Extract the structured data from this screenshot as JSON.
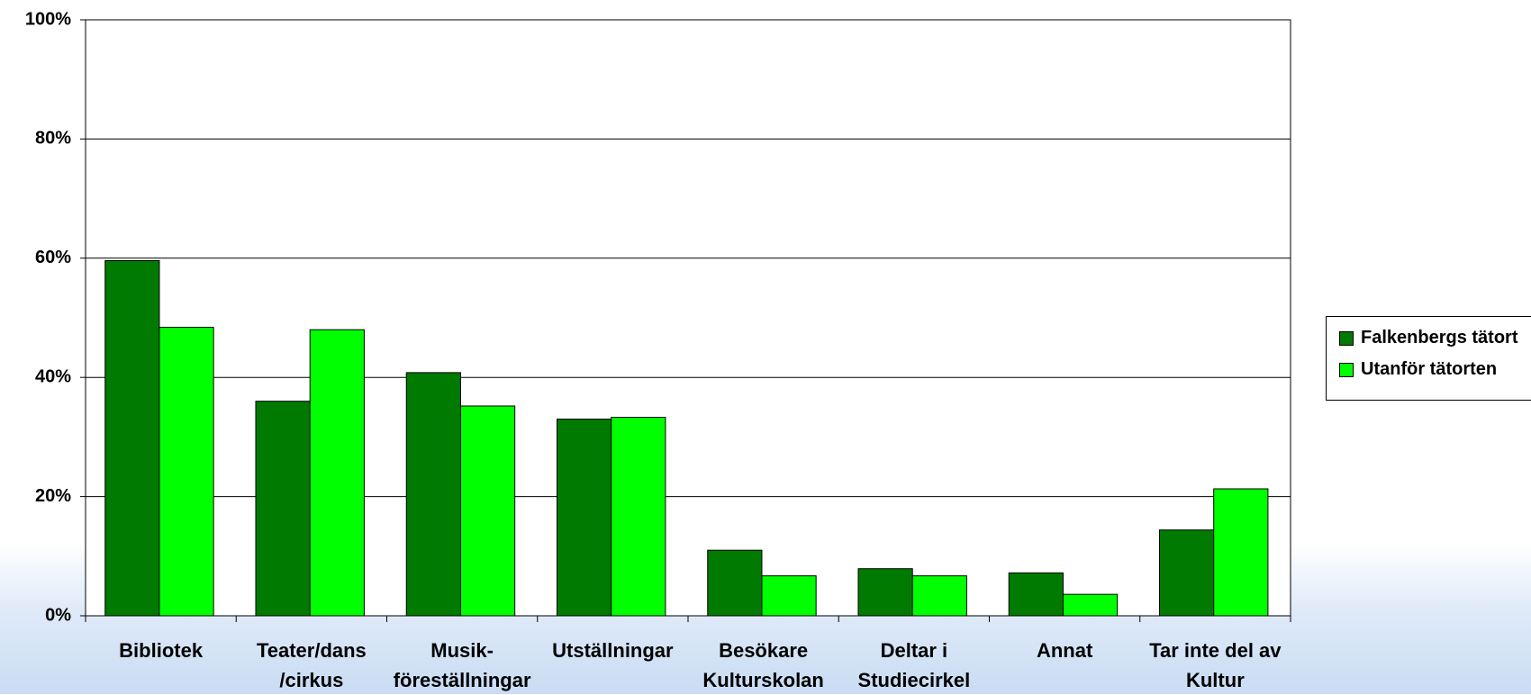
{
  "chart_data": {
    "type": "bar",
    "categories": [
      "Bibliotek",
      "Teater/dans\n/cirkus",
      "Musik-\nföreställningar",
      "Utställningar",
      "Besökare\nKulturskolan",
      "Deltar i\nStudiecirkel",
      "Annat",
      "Tar inte del av\nKultur"
    ],
    "series": [
      {
        "name": "Falkenbergs tätort",
        "color": "#007a00",
        "values": [
          59.6,
          36.0,
          40.8,
          33.0,
          11.0,
          7.9,
          7.2,
          14.4
        ]
      },
      {
        "name": "Utanför tätorten",
        "color": "#00ff00",
        "values": [
          48.4,
          48.0,
          35.2,
          33.3,
          6.7,
          6.7,
          3.6,
          21.3
        ]
      }
    ],
    "ylim": [
      0,
      100
    ],
    "yticks": [
      {
        "value": 0,
        "label": "0%"
      },
      {
        "value": 20,
        "label": "20%"
      },
      {
        "value": 40,
        "label": "40%"
      },
      {
        "value": 60,
        "label": "60%"
      },
      {
        "value": 80,
        "label": "80%"
      },
      {
        "value": 100,
        "label": "100%"
      }
    ],
    "grid": true,
    "legend": "right"
  }
}
